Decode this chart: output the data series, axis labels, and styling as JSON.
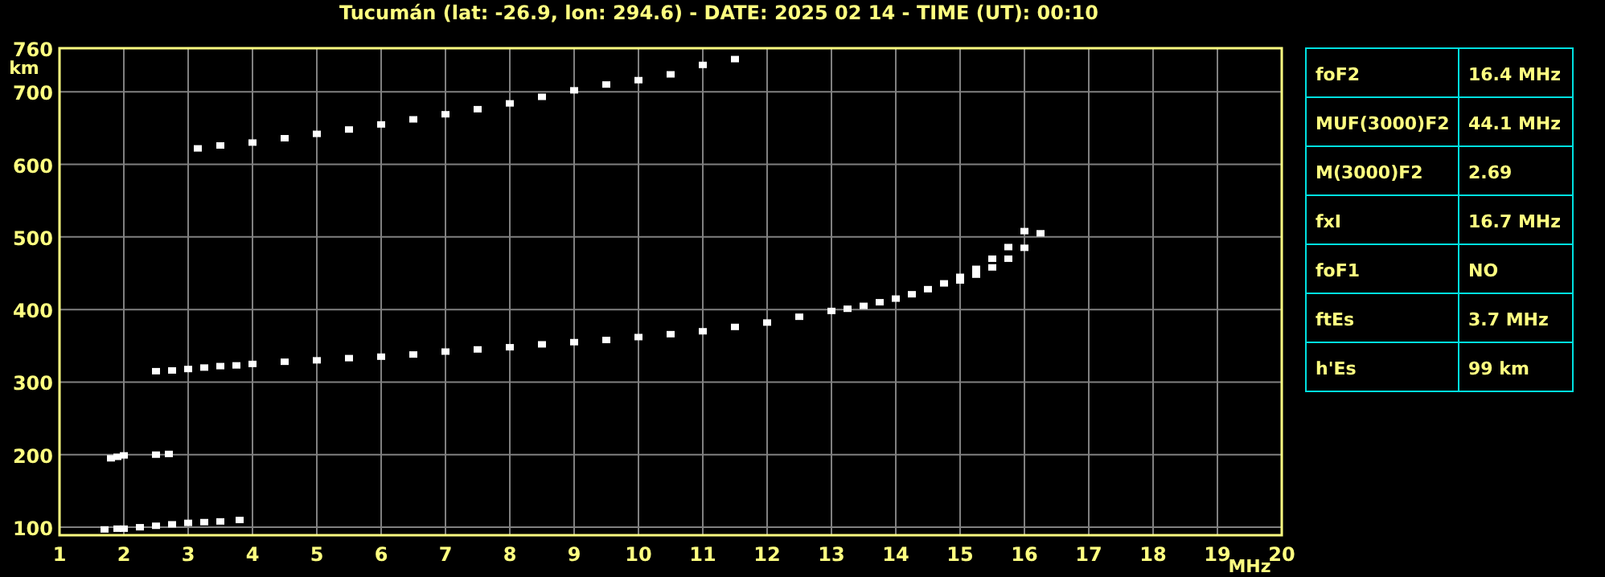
{
  "chart_data": [
    {
      "type": "scatter",
      "title": "Tucumán (lat: -26.9, lon: 294.6) - DATE: 2025 02 14 - TIME (UT): 00:10",
      "xlabel": "MHz",
      "ylabel": "km",
      "marker": "square",
      "grid": true,
      "xlim": [
        1,
        20
      ],
      "xticks": [
        1,
        2,
        3,
        4,
        5,
        6,
        7,
        8,
        9,
        10,
        11,
        12,
        13,
        14,
        15,
        16,
        17,
        18,
        19,
        20
      ],
      "ylim": [
        89,
        760
      ],
      "yticks": [
        100,
        200,
        300,
        400,
        500,
        600,
        700,
        760
      ],
      "series": [
        {
          "color": "#ffffff",
          "x": [
            2.5,
            2.75,
            3,
            3.25,
            3.5,
            3.75,
            4,
            4.5,
            5,
            5.5,
            6,
            6.5,
            7,
            7.5,
            8,
            8.5,
            9,
            9.5,
            10,
            10.5,
            11,
            11.5,
            12,
            12.5,
            13,
            13.25,
            13.5,
            13.75,
            14,
            14.25,
            14.5,
            14.75,
            15,
            15.25,
            15.5,
            15.75,
            16
          ],
          "values": [
            315,
            316,
            318,
            320,
            322,
            323,
            325,
            328,
            330,
            333,
            335,
            338,
            342,
            345,
            348,
            352,
            355,
            358,
            362,
            366,
            370,
            376,
            382,
            390,
            398,
            401,
            405,
            410,
            415,
            421,
            428,
            436,
            445,
            456,
            470,
            486,
            508
          ]
        },
        {
          "color": "#ffffff",
          "x": [
            15,
            15.25,
            15.5,
            15.75,
            16,
            16.25
          ],
          "values": [
            440,
            448,
            458,
            470,
            485,
            505
          ]
        },
        {
          "color": "#ffffff",
          "x": [
            3.15,
            3.5,
            4,
            4.5,
            5,
            5.5,
            6,
            6.5,
            7,
            7.5,
            8,
            8.5,
            9,
            9.5,
            10,
            10.5,
            11,
            11.5
          ],
          "values": [
            622,
            626,
            630,
            636,
            642,
            648,
            655,
            662,
            669,
            676,
            684,
            693,
            702,
            710,
            716,
            724,
            737,
            745
          ]
        },
        {
          "color": "#ffffff",
          "x": [
            1.7,
            1.9,
            2,
            2.25,
            2.5,
            2.75,
            3,
            3.25,
            3.5,
            3.8
          ],
          "values": [
            97,
            98,
            98,
            100,
            102,
            104,
            106,
            107,
            108,
            110
          ]
        },
        {
          "color": "#ffffff",
          "x": [
            1.8,
            1.9,
            2,
            2.5,
            2.7
          ],
          "values": [
            195,
            197,
            199,
            200,
            201
          ]
        }
      ]
    },
    {
      "type": "other",
      "annotations": [
        "foF2",
        "16.4 MHz",
        "MUF(3000)F2",
        "44.1 MHz",
        "M(3000)F2",
        "2.69",
        "fxI",
        "16.7 MHz",
        "foF1",
        "NO",
        "ftEs",
        "3.7 MHz",
        "h'Es",
        "99 km"
      ]
    }
  ]
}
